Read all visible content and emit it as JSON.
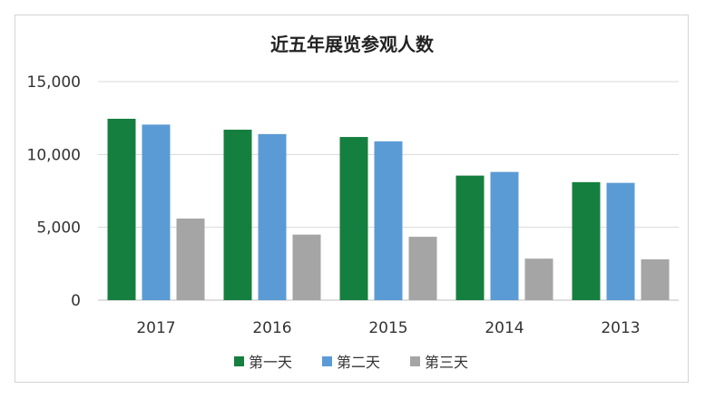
{
  "chart_data": {
    "type": "bar",
    "title": "近五年展览参观人数",
    "xlabel": "",
    "ylabel": "",
    "categories": [
      "2017",
      "2016",
      "2015",
      "2014",
      "2013"
    ],
    "series": [
      {
        "name": "第一天",
        "color": "#157F3F",
        "values": [
          12450,
          11700,
          11200,
          8550,
          8100
        ]
      },
      {
        "name": "第二天",
        "color": "#5B9BD5",
        "values": [
          12050,
          11400,
          10900,
          8800,
          8050
        ]
      },
      {
        "name": "第三天",
        "color": "#A5A5A5",
        "values": [
          5600,
          4500,
          4350,
          2850,
          2800
        ]
      }
    ],
    "ylim": [
      0,
      15000
    ],
    "yticks": [
      0,
      5000,
      10000,
      15000
    ],
    "ytick_labels": [
      "0",
      "5,000",
      "10,000",
      "15,000"
    ],
    "grid": true,
    "legend_position": "bottom"
  }
}
